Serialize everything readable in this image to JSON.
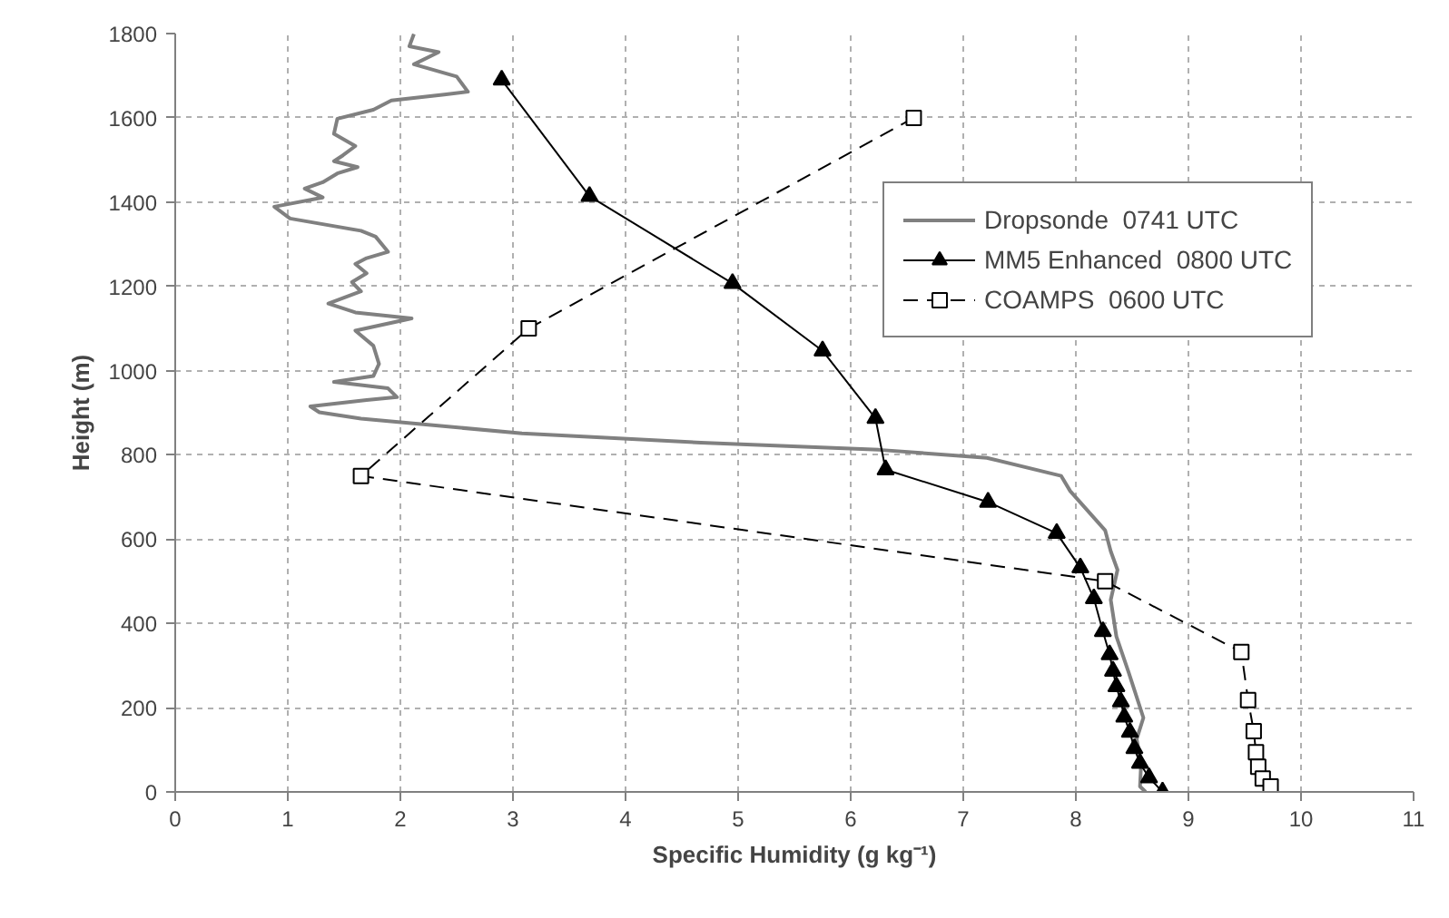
{
  "chart_data": {
    "type": "line",
    "xlabel": "Specific Humidity (g kg⁻¹)",
    "ylabel": "Height (m)",
    "xlim": [
      0,
      11
    ],
    "xticks": [
      0,
      1,
      2,
      3,
      4,
      5,
      6,
      7,
      8,
      9,
      10,
      11
    ],
    "ylim": [
      0,
      1800
    ],
    "yticks": [
      0,
      200,
      400,
      600,
      800,
      1000,
      1200,
      1400,
      1600,
      1800
    ],
    "grid": true,
    "legend": "top right",
    "series": [
      {
        "name": "Dropsonde  0741 UTC",
        "color": "#808080",
        "marker": "none",
        "line_style": "solid",
        "x": [
          2.12,
          2.08,
          2.34,
          2.12,
          2.5,
          2.6,
          2.39,
          1.92,
          1.76,
          1.44,
          1.41,
          1.6,
          1.49,
          1.41,
          1.62,
          1.44,
          1.31,
          1.15,
          1.31,
          0.88,
          1.02,
          1.65,
          1.78,
          1.89,
          1.7,
          1.6,
          1.7,
          1.57,
          1.65,
          1.36,
          1.6,
          2.1,
          1.6,
          1.76,
          1.81,
          1.76,
          1.41,
          1.89,
          1.97,
          1.7,
          1.2,
          1.28,
          1.65,
          3.08,
          4.67,
          6.25,
          7.21,
          7.87,
          7.95,
          8.26,
          8.31,
          8.37,
          8.31,
          8.36,
          8.47,
          8.6,
          8.54,
          8.58,
          8.57,
          8.62
        ],
        "values": [
          1799,
          1770,
          1756,
          1727,
          1698,
          1662,
          1655,
          1641,
          1619,
          1598,
          1562,
          1533,
          1511,
          1497,
          1483,
          1468,
          1447,
          1432,
          1411,
          1389,
          1361,
          1332,
          1318,
          1282,
          1267,
          1253,
          1231,
          1210,
          1188,
          1159,
          1138,
          1124,
          1095,
          1059,
          1016,
          987,
          973,
          958,
          937,
          930,
          915,
          901,
          886,
          851,
          829,
          812,
          793,
          750,
          714,
          621,
          571,
          527,
          456,
          369,
          283,
          176,
          125,
          68,
          13,
          0
        ]
      },
      {
        "name": "MM5 Enhanced  0800 UTC",
        "color": "#000000",
        "marker": "triangle",
        "line_style": "solid",
        "x": [
          2.9,
          3.68,
          4.95,
          5.75,
          6.22,
          6.31,
          7.22,
          7.83,
          8.04,
          8.16,
          8.24,
          8.3,
          8.33,
          8.36,
          8.4,
          8.43,
          8.48,
          8.52,
          8.57,
          8.65,
          8.77
        ],
        "values": [
          1690,
          1414,
          1207,
          1047,
          887,
          765,
          688,
          614,
          532,
          459,
          381,
          326,
          287,
          250,
          214,
          178,
          142,
          103,
          68,
          34,
          0
        ]
      },
      {
        "name": "COAMPS  0600 UTC",
        "color": "#000000",
        "marker": "square",
        "line_style": "dashed",
        "x": [
          6.56,
          3.14,
          1.65,
          8.26,
          9.47,
          9.53,
          9.58,
          9.6,
          9.62,
          9.66,
          9.73
        ],
        "values": [
          1600,
          1100,
          750,
          500,
          332,
          218,
          144,
          94,
          60,
          32,
          13
        ]
      }
    ]
  }
}
